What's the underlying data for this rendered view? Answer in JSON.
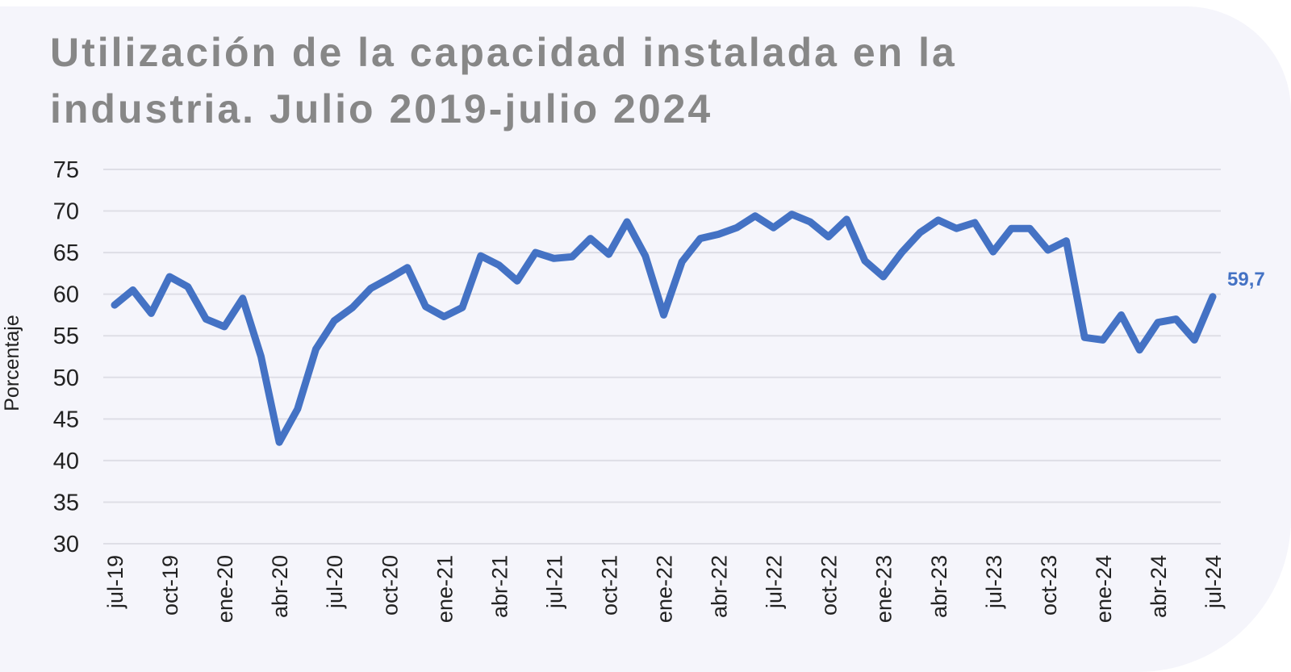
{
  "chart_data": {
    "type": "line",
    "title_line1": "Utilización de la capacidad instalada en la",
    "title_line2": "industria. Julio 2019-julio 2024",
    "xlabel": "",
    "ylabel": "Porcentaje",
    "ylim": [
      30,
      75
    ],
    "yticks": [
      75,
      70,
      65,
      60,
      55,
      50,
      45,
      40,
      35,
      30
    ],
    "grid": true,
    "line_color": "#4472c4",
    "x": [
      "jul-19",
      "ago-19",
      "sep-19",
      "oct-19",
      "nov-19",
      "dic-19",
      "ene-20",
      "feb-20",
      "mar-20",
      "abr-20",
      "may-20",
      "jun-20",
      "jul-20",
      "ago-20",
      "sep-20",
      "oct-20",
      "nov-20",
      "dic-20",
      "ene-21",
      "feb-21",
      "mar-21",
      "abr-21",
      "may-21",
      "jun-21",
      "jul-21",
      "ago-21",
      "sep-21",
      "oct-21",
      "nov-21",
      "dic-21",
      "ene-22",
      "feb-22",
      "mar-22",
      "abr-22",
      "may-22",
      "jun-22",
      "jul-22",
      "ago-22",
      "sep-22",
      "oct-22",
      "nov-22",
      "dic-22",
      "ene-23",
      "feb-23",
      "mar-23",
      "abr-23",
      "may-23",
      "jun-23",
      "jul-23",
      "ago-23",
      "sep-23",
      "oct-23",
      "nov-23",
      "dic-23",
      "ene-24",
      "feb-24",
      "mar-24",
      "abr-24",
      "may-24",
      "jun-24",
      "jul-24"
    ],
    "xtick_labels": [
      "jul-19",
      "oct-19",
      "ene-20",
      "abr-20",
      "jul-20",
      "oct-20",
      "ene-21",
      "abr-21",
      "jul-21",
      "oct-21",
      "ene-22",
      "abr-22",
      "jul-22",
      "oct-22",
      "ene-23",
      "abr-23",
      "jul-23",
      "oct-23",
      "ene-24",
      "abr-24",
      "jul-24"
    ],
    "series": [
      {
        "name": "Utilización de la capacidad instalada",
        "values": [
          58.7,
          60.5,
          57.7,
          62.1,
          60.9,
          57.0,
          56.1,
          59.5,
          52.5,
          42.2,
          46.2,
          53.4,
          56.8,
          58.4,
          60.7,
          61.9,
          63.2,
          58.5,
          57.3,
          58.4,
          64.6,
          63.5,
          61.6,
          65.0,
          64.3,
          64.5,
          66.7,
          64.8,
          68.7,
          64.6,
          57.5,
          63.9,
          66.7,
          67.2,
          68.0,
          69.4,
          68.0,
          69.6,
          68.7,
          66.9,
          69.0,
          64.0,
          62.1,
          65.0,
          67.4,
          68.9,
          67.9,
          68.6,
          65.1,
          67.9,
          67.9,
          65.3,
          66.4,
          54.8,
          54.5,
          57.5,
          53.3,
          56.6,
          57.0,
          54.5,
          59.7
        ]
      }
    ],
    "annotations": [
      {
        "at": "jul-24",
        "text": "59,7"
      }
    ]
  }
}
